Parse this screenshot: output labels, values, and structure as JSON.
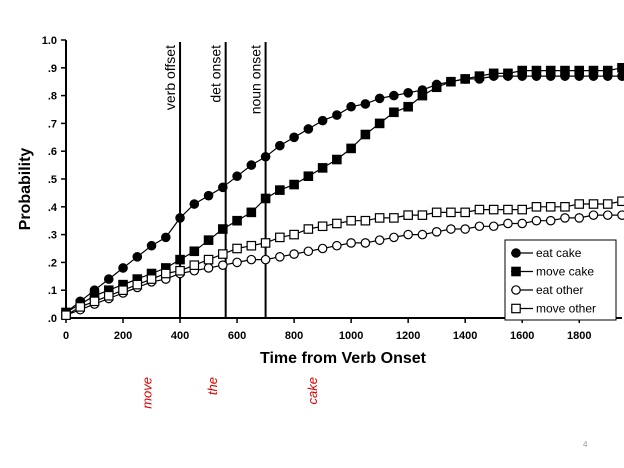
{
  "chart_data": {
    "type": "line",
    "xlabel": "Time from Verb Onset",
    "ylabel": "Probability",
    "xlim": [
      0,
      1950
    ],
    "ylim": [
      0,
      1.0
    ],
    "x_ticks": [
      0,
      200,
      400,
      600,
      800,
      1000,
      1200,
      1400,
      1600,
      1800
    ],
    "x_tick_labels": [
      "0",
      "200",
      "400",
      "600",
      "800",
      "1000",
      "1200",
      "1400",
      "1600",
      "1800"
    ],
    "y_ticks": [
      0,
      0.1,
      0.2,
      0.3,
      0.4,
      0.5,
      0.6,
      0.7,
      0.8,
      0.9,
      1.0
    ],
    "y_tick_labels": [
      ".0",
      ".1",
      ".2",
      ".3",
      ".4",
      ".5",
      ".6",
      ".7",
      ".8",
      ".9",
      "1.0"
    ],
    "x": [
      0,
      50,
      100,
      150,
      200,
      250,
      300,
      350,
      400,
      450,
      500,
      550,
      600,
      650,
      700,
      750,
      800,
      850,
      900,
      950,
      1000,
      1050,
      1100,
      1150,
      1200,
      1250,
      1300,
      1350,
      1400,
      1450,
      1500,
      1550,
      1600,
      1650,
      1700,
      1750,
      1800,
      1850,
      1900,
      1950
    ],
    "series": [
      {
        "name": "eat cake",
        "marker": "filled-circle",
        "values": [
          0.02,
          0.06,
          0.1,
          0.14,
          0.18,
          0.22,
          0.26,
          0.29,
          0.36,
          0.41,
          0.44,
          0.47,
          0.51,
          0.55,
          0.58,
          0.62,
          0.65,
          0.68,
          0.71,
          0.73,
          0.76,
          0.77,
          0.79,
          0.8,
          0.81,
          0.82,
          0.84,
          0.85,
          0.86,
          0.86,
          0.87,
          0.87,
          0.87,
          0.87,
          0.87,
          0.87,
          0.87,
          0.87,
          0.87,
          0.87
        ]
      },
      {
        "name": "move cake",
        "marker": "filled-square",
        "values": [
          0.02,
          0.05,
          0.08,
          0.1,
          0.12,
          0.14,
          0.16,
          0.18,
          0.21,
          0.24,
          0.28,
          0.32,
          0.35,
          0.38,
          0.43,
          0.46,
          0.48,
          0.51,
          0.54,
          0.57,
          0.61,
          0.66,
          0.7,
          0.74,
          0.76,
          0.8,
          0.83,
          0.85,
          0.86,
          0.87,
          0.88,
          0.88,
          0.89,
          0.89,
          0.89,
          0.89,
          0.89,
          0.89,
          0.89,
          0.9
        ]
      },
      {
        "name": "eat other",
        "marker": "open-circle",
        "values": [
          0.01,
          0.03,
          0.05,
          0.07,
          0.09,
          0.11,
          0.13,
          0.14,
          0.16,
          0.17,
          0.18,
          0.19,
          0.2,
          0.21,
          0.21,
          0.22,
          0.23,
          0.24,
          0.25,
          0.26,
          0.27,
          0.27,
          0.28,
          0.29,
          0.3,
          0.3,
          0.31,
          0.32,
          0.32,
          0.33,
          0.33,
          0.34,
          0.34,
          0.35,
          0.35,
          0.36,
          0.36,
          0.37,
          0.37,
          0.37
        ]
      },
      {
        "name": "move other",
        "marker": "open-square",
        "values": [
          0.01,
          0.04,
          0.06,
          0.08,
          0.1,
          0.12,
          0.14,
          0.16,
          0.17,
          0.19,
          0.21,
          0.23,
          0.25,
          0.26,
          0.27,
          0.29,
          0.3,
          0.32,
          0.33,
          0.34,
          0.35,
          0.35,
          0.36,
          0.36,
          0.37,
          0.37,
          0.38,
          0.38,
          0.38,
          0.39,
          0.39,
          0.39,
          0.39,
          0.4,
          0.4,
          0.4,
          0.41,
          0.41,
          0.41,
          0.42
        ]
      }
    ],
    "vertical_lines": [
      {
        "x": 400,
        "label": "verb offset"
      },
      {
        "x": 560,
        "label": "det onset"
      },
      {
        "x": 700,
        "label": "noun onset"
      }
    ],
    "legend_position": "bottom-right",
    "grid": false
  },
  "annotations": [
    {
      "text": "move",
      "x": 300
    },
    {
      "text": "the",
      "x": 530
    },
    {
      "text": "cake",
      "x": 880
    }
  ],
  "page_number": "4"
}
